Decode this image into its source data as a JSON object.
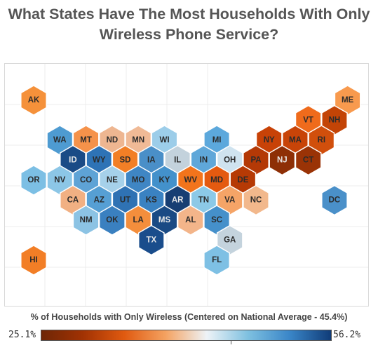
{
  "title": "What States Have The Most Households With Only Wireless Phone Service?",
  "legend": {
    "title": "% of Households with Only Wireless (Centered on National Average - 45.4%)",
    "min_label": "25.1%",
    "max_label": "56.2%",
    "min_value": 25.1,
    "center_value": 45.4,
    "max_value": 56.2,
    "gradient_colors": [
      "#6e2606",
      "#a13203",
      "#e05a10",
      "#f4a261",
      "#eef3f7",
      "#7ec0e0",
      "#3a86c8",
      "#103c78"
    ]
  },
  "states": [
    {
      "abbr": "AK",
      "color": "#f5913a"
    },
    {
      "abbr": "ME",
      "color": "#f89a4e"
    },
    {
      "abbr": "VT",
      "color": "#ef6b1c"
    },
    {
      "abbr": "NH",
      "color": "#c34406"
    },
    {
      "abbr": "WA",
      "color": "#4e9bd1"
    },
    {
      "abbr": "MT",
      "color": "#f5924a"
    },
    {
      "abbr": "ND",
      "color": "#eeb691"
    },
    {
      "abbr": "MN",
      "color": "#f0ba96"
    },
    {
      "abbr": "WI",
      "color": "#9ccde9"
    },
    {
      "abbr": "MI",
      "color": "#5ca8dc"
    },
    {
      "abbr": "NY",
      "color": "#c84207"
    },
    {
      "abbr": "MA",
      "color": "#c84408"
    },
    {
      "abbr": "RI",
      "color": "#d14f0c"
    },
    {
      "abbr": "ID",
      "color": "#1a4b86"
    },
    {
      "abbr": "WY",
      "color": "#2e73b6"
    },
    {
      "abbr": "SD",
      "color": "#f27f26"
    },
    {
      "abbr": "IA",
      "color": "#4a8fc8"
    },
    {
      "abbr": "IL",
      "color": "#c3d2dc"
    },
    {
      "abbr": "IN",
      "color": "#5fa7d9"
    },
    {
      "abbr": "OH",
      "color": "#cfe3ef"
    },
    {
      "abbr": "PA",
      "color": "#b43906"
    },
    {
      "abbr": "NJ",
      "color": "#8e2f06"
    },
    {
      "abbr": "CT",
      "color": "#9a3306"
    },
    {
      "abbr": "OR",
      "color": "#7cbfe4"
    },
    {
      "abbr": "NV",
      "color": "#8cc6e6"
    },
    {
      "abbr": "CO",
      "color": "#5ea3d6"
    },
    {
      "abbr": "NE",
      "color": "#a6d1ea"
    },
    {
      "abbr": "MO",
      "color": "#3f86c4"
    },
    {
      "abbr": "KY",
      "color": "#4391cb"
    },
    {
      "abbr": "WV",
      "color": "#f2741c"
    },
    {
      "abbr": "MD",
      "color": "#e45a10"
    },
    {
      "abbr": "DE",
      "color": "#b63a05"
    },
    {
      "abbr": "CA",
      "color": "#f1b083"
    },
    {
      "abbr": "AZ",
      "color": "#569fd4"
    },
    {
      "abbr": "UT",
      "color": "#2f72b4"
    },
    {
      "abbr": "KS",
      "color": "#3a82c2"
    },
    {
      "abbr": "AR",
      "color": "#173e73"
    },
    {
      "abbr": "TN",
      "color": "#8cc9e7"
    },
    {
      "abbr": "VA",
      "color": "#f5a467"
    },
    {
      "abbr": "NC",
      "color": "#f2b88c"
    },
    {
      "abbr": "DC",
      "color": "#4a90c9"
    },
    {
      "abbr": "NM",
      "color": "#8cc3e4"
    },
    {
      "abbr": "OK",
      "color": "#3a80c0"
    },
    {
      "abbr": "LA",
      "color": "#f48e3c"
    },
    {
      "abbr": "MS",
      "color": "#1a4a84"
    },
    {
      "abbr": "AL",
      "color": "#f3b58a"
    },
    {
      "abbr": "SC",
      "color": "#4590ca"
    },
    {
      "abbr": "TX",
      "color": "#1a4d8c"
    },
    {
      "abbr": "GA",
      "color": "#c4d3dd"
    },
    {
      "abbr": "HI",
      "color": "#f27e26"
    },
    {
      "abbr": "FL",
      "color": "#7ec0e4"
    }
  ]
}
